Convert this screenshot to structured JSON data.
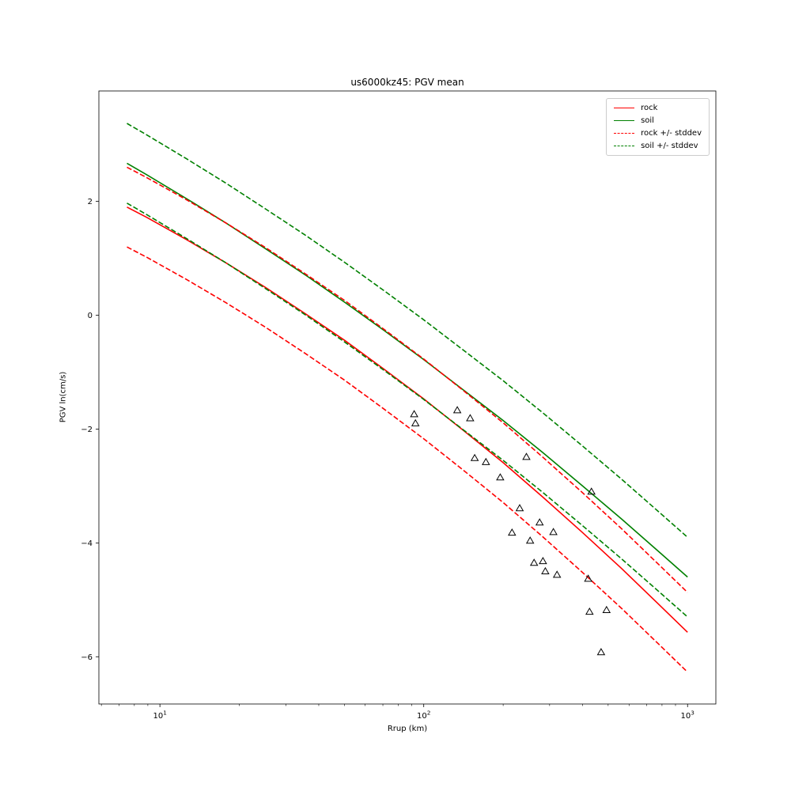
{
  "figure": {
    "title": "us6000kz45: PGV mean",
    "xlabel": "Rrup (km)",
    "ylabel": "PGV ln(cm/s)"
  },
  "legend": {
    "items": [
      {
        "label": "rock",
        "color": "#ff0000",
        "dash": "solid"
      },
      {
        "label": "soil",
        "color": "#008000",
        "dash": "solid"
      },
      {
        "label": "rock +/- stddev",
        "color": "#ff0000",
        "dash": "dashed"
      },
      {
        "label": "soil +/- stddev",
        "color": "#008000",
        "dash": "dashed"
      }
    ]
  },
  "chart_data": {
    "type": "line",
    "title": "us6000kz45: PGV mean",
    "xlabel": "Rrup (km)",
    "ylabel": "PGV ln(cm/s)",
    "x_scale": "log",
    "grid": false,
    "legend_position": "upper right",
    "xlim": [
      5.87,
      1280
    ],
    "ylim": [
      -6.83,
      3.94
    ],
    "stddev": 0.7,
    "x": [
      7.5,
      8.9,
      12.6,
      17.8,
      25.1,
      35.5,
      50.1,
      70.8,
      100,
      141,
      200,
      282,
      398,
      562,
      794,
      1000
    ],
    "series": [
      {
        "name": "rock",
        "color": "#ff0000",
        "style": "solid",
        "values": [
          1.9,
          1.72,
          1.33,
          0.92,
          0.49,
          0.03,
          -0.44,
          -0.95,
          -1.47,
          -2.02,
          -2.59,
          -3.19,
          -3.81,
          -4.45,
          -5.12,
          -5.57
        ]
      },
      {
        "name": "soil",
        "color": "#008000",
        "style": "solid",
        "values": [
          2.67,
          2.47,
          2.05,
          1.62,
          1.17,
          0.71,
          0.23,
          -0.27,
          -0.78,
          -1.31,
          -1.85,
          -2.41,
          -2.99,
          -3.58,
          -4.19,
          -4.6
        ]
      },
      {
        "name": "rock plus stddev",
        "color": "#ff0000",
        "style": "dashed",
        "values": [
          2.6,
          2.42,
          2.03,
          1.62,
          1.19,
          0.73,
          0.26,
          -0.25,
          -0.77,
          -1.32,
          -1.89,
          -2.49,
          -3.11,
          -3.75,
          -4.42,
          -4.87
        ]
      },
      {
        "name": "rock minus stddev",
        "color": "#ff0000",
        "style": "dashed",
        "values": [
          1.2,
          1.02,
          0.63,
          0.22,
          -0.21,
          -0.67,
          -1.14,
          -1.65,
          -2.17,
          -2.72,
          -3.29,
          -3.89,
          -4.51,
          -5.15,
          -5.82,
          -6.27
        ]
      },
      {
        "name": "soil plus stddev",
        "color": "#008000",
        "style": "dashed",
        "values": [
          3.37,
          3.17,
          2.75,
          2.32,
          1.87,
          1.41,
          0.93,
          0.43,
          -0.08,
          -0.61,
          -1.15,
          -1.71,
          -2.29,
          -2.88,
          -3.49,
          -3.9
        ]
      },
      {
        "name": "soil minus stddev",
        "color": "#008000",
        "style": "dashed",
        "values": [
          1.97,
          1.77,
          1.35,
          0.92,
          0.47,
          0.01,
          -0.47,
          -0.97,
          -1.48,
          -2.01,
          -2.55,
          -3.11,
          -3.69,
          -4.28,
          -4.89,
          -5.3
        ]
      }
    ],
    "scatter": {
      "name": "observations",
      "marker": "triangle-up",
      "edge_color": "#000000",
      "points": [
        [
          92,
          -1.74
        ],
        [
          93,
          -1.9
        ],
        [
          134,
          -1.67
        ],
        [
          150,
          -1.81
        ],
        [
          156,
          -2.51
        ],
        [
          172,
          -2.58
        ],
        [
          195,
          -2.85
        ],
        [
          245,
          -2.49
        ],
        [
          231,
          -3.39
        ],
        [
          216,
          -3.82
        ],
        [
          253,
          -3.96
        ],
        [
          275,
          -3.64
        ],
        [
          310,
          -3.81
        ],
        [
          262,
          -4.35
        ],
        [
          283,
          -4.32
        ],
        [
          289,
          -4.5
        ],
        [
          320,
          -4.56
        ],
        [
          432,
          -3.1
        ],
        [
          420,
          -4.63
        ],
        [
          425,
          -5.21
        ],
        [
          493,
          -5.18
        ],
        [
          470,
          -5.92
        ]
      ]
    },
    "x_ticks": {
      "major": [
        {
          "value": 10,
          "base": "10",
          "exp": "1"
        },
        {
          "value": 100,
          "base": "10",
          "exp": "2"
        },
        {
          "value": 1000,
          "base": "10",
          "exp": "3"
        }
      ],
      "minor": [
        6,
        7,
        8,
        9,
        20,
        30,
        40,
        50,
        60,
        70,
        80,
        90,
        200,
        300,
        400,
        500,
        600,
        700,
        800,
        900
      ]
    },
    "y_ticks": [
      {
        "value": 2,
        "label": "2"
      },
      {
        "value": 0,
        "label": "0"
      },
      {
        "value": -2,
        "label": "−2"
      },
      {
        "value": -4,
        "label": "−4"
      },
      {
        "value": -6,
        "label": "−6"
      }
    ]
  }
}
